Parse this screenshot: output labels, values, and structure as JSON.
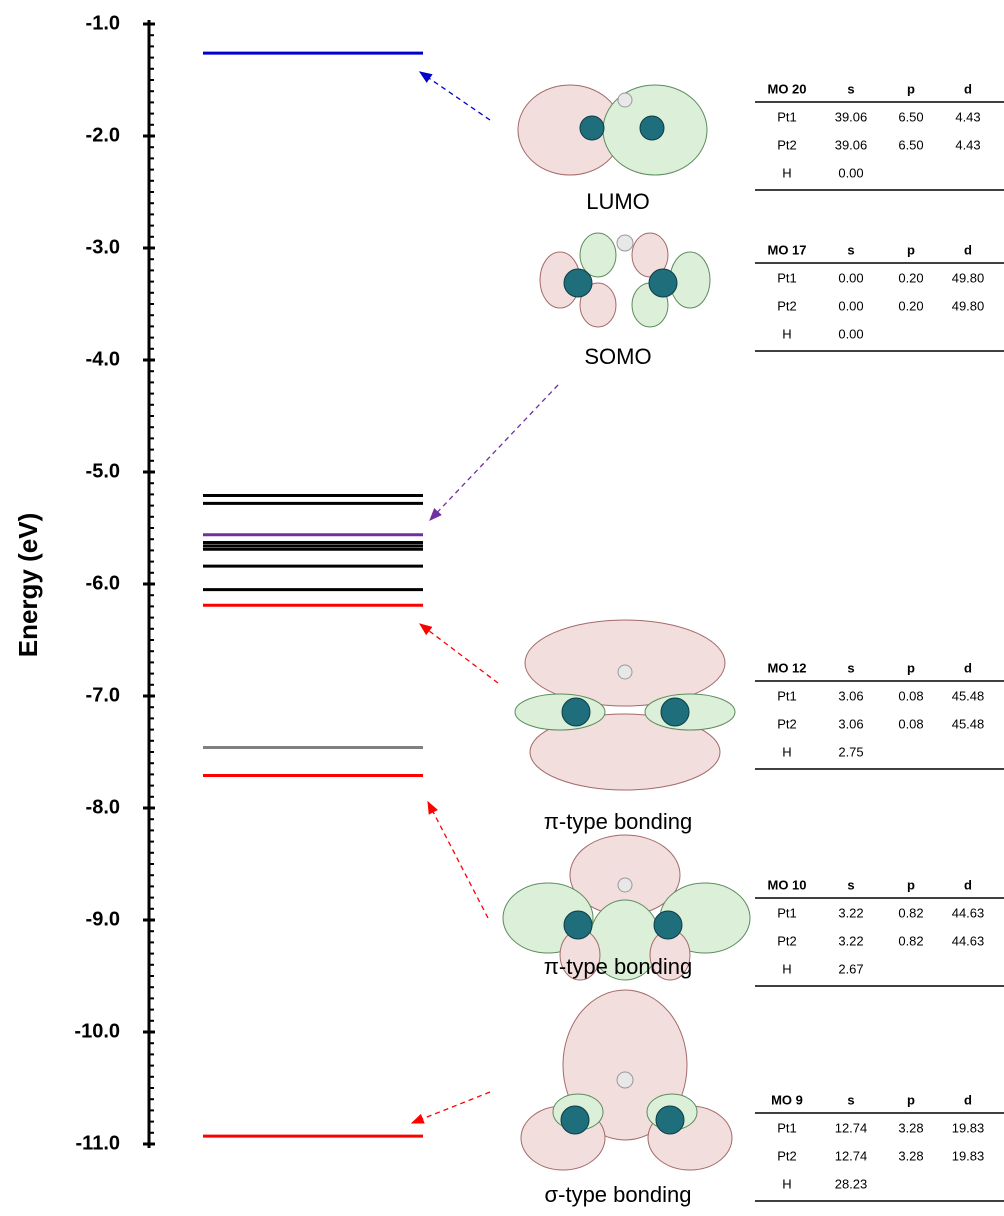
{
  "chart_data": {
    "type": "levels",
    "ylabel": "Energy (eV)",
    "ylim": [
      -11.0,
      -1.0
    ],
    "yticks": [
      {
        "value": -1,
        "label": "-1.0"
      },
      {
        "value": -2,
        "label": "-2.0"
      },
      {
        "value": -3,
        "label": "-3.0"
      },
      {
        "value": -4,
        "label": "-4.0"
      },
      {
        "value": -5,
        "label": "-5.0"
      },
      {
        "value": -6,
        "label": "-6.0"
      },
      {
        "value": -7,
        "label": "-7.0"
      },
      {
        "value": -8,
        "label": "-8.0"
      },
      {
        "value": -9,
        "label": "-9.0"
      },
      {
        "value": -10,
        "label": "-10.0"
      },
      {
        "value": -11,
        "label": "-11.0"
      }
    ],
    "values": [
      -1.26,
      -5.21,
      -5.28,
      -5.56,
      -5.63,
      -5.66,
      -5.69,
      -5.84,
      -6.05,
      -6.19,
      -7.46,
      -7.71,
      -10.93
    ],
    "colors": [
      "#0000cc",
      "#000000",
      "#000000",
      "#7030a0",
      "#000000",
      "#000000",
      "#000000",
      "#000000",
      "#000000",
      "#ff0000",
      "#808080",
      "#ff0000",
      "#ff0000"
    ]
  },
  "orbitals": [
    {
      "label": "LUMO",
      "table": {
        "header": [
          "MO 20",
          "s",
          "p",
          "d"
        ],
        "rows": [
          [
            "Pt1",
            "39.06",
            "6.50",
            "4.43"
          ],
          [
            "Pt2",
            "39.06",
            "6.50",
            "4.43"
          ],
          [
            "H",
            "0.00"
          ]
        ]
      }
    },
    {
      "label": "SOMO",
      "table": {
        "header": [
          "MO 17",
          "s",
          "p",
          "d"
        ],
        "rows": [
          [
            "Pt1",
            "0.00",
            "0.20",
            "49.80"
          ],
          [
            "Pt2",
            "0.00",
            "0.20",
            "49.80"
          ],
          [
            "H",
            "0.00"
          ]
        ]
      }
    },
    {
      "label": "π-type bonding",
      "table": {
        "header": [
          "MO 12",
          "s",
          "p",
          "d"
        ],
        "rows": [
          [
            "Pt1",
            "3.06",
            "0.08",
            "45.48"
          ],
          [
            "Pt2",
            "3.06",
            "0.08",
            "45.48"
          ],
          [
            "H",
            "2.75"
          ]
        ]
      }
    },
    {
      "label": "π-type bonding",
      "table": {
        "header": [
          "MO 10",
          "s",
          "p",
          "d"
        ],
        "rows": [
          [
            "Pt1",
            "3.22",
            "0.82",
            "44.63"
          ],
          [
            "Pt2",
            "3.22",
            "0.82",
            "44.63"
          ],
          [
            "H",
            "2.67"
          ]
        ]
      }
    },
    {
      "label": "σ-type bonding",
      "table": {
        "header": [
          "MO 9",
          "s",
          "p",
          "d"
        ],
        "rows": [
          [
            "Pt1",
            "12.74",
            "3.28",
            "19.83"
          ],
          [
            "Pt2",
            "12.74",
            "3.28",
            "19.83"
          ],
          [
            "H",
            "28.23"
          ]
        ]
      }
    }
  ]
}
